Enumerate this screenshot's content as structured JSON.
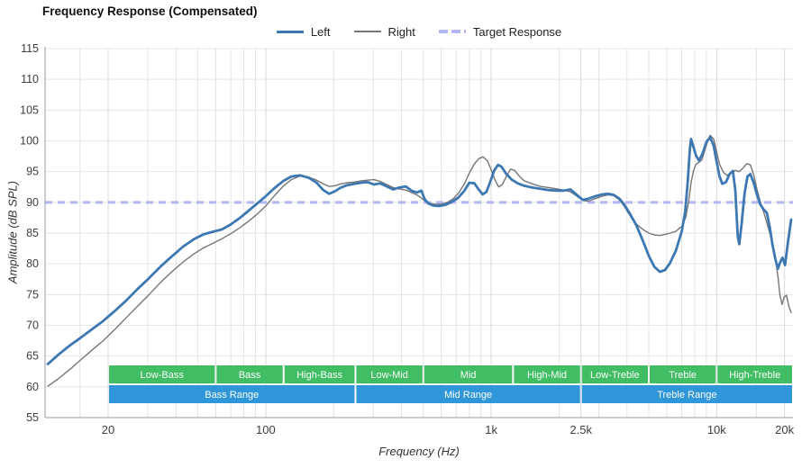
{
  "chart_data": {
    "type": "line",
    "title": "Frequency Response (Compensated)",
    "xlabel": "Frequency (Hz)",
    "ylabel": "Amplitude (dB SPL)",
    "x_scale": "log",
    "xlim": [
      10.5,
      21800
    ],
    "ylim": [
      55,
      115
    ],
    "y_ticks": [
      115,
      110,
      105,
      100,
      95,
      90,
      85,
      80,
      75,
      70,
      65,
      60,
      55
    ],
    "x_ticks": [
      {
        "f": 20,
        "label": "20"
      },
      {
        "f": 100,
        "label": "100"
      },
      {
        "f": 1000,
        "label": "1k"
      },
      {
        "f": 2500,
        "label": "2.5k"
      },
      {
        "f": 10000,
        "label": "10k"
      },
      {
        "f": 20000,
        "label": "20k"
      }
    ],
    "x_minor_gridlines": [
      15,
      30,
      40,
      50,
      60,
      70,
      80,
      90,
      200,
      300,
      400,
      500,
      600,
      700,
      800,
      900,
      2000,
      3000,
      4000,
      5000,
      6000,
      7000,
      8000,
      9000,
      15000
    ],
    "grid_color": "#e4e4e4",
    "major_grid_color": "#d9d9d9",
    "axis_color": "#9b9b9b",
    "tick_label_color": "#3d3d3d",
    "target": {
      "name": "Target Response",
      "value": 90,
      "color": "#b2b7f3",
      "width": 3,
      "dash": "8 6"
    },
    "series": [
      {
        "name": "Left",
        "color": "#3e78b3",
        "width": 2.8,
        "points": [
          [
            10.8,
            63.7
          ],
          [
            12,
            65.2
          ],
          [
            13.5,
            66.7
          ],
          [
            15,
            67.9
          ],
          [
            17,
            69.4
          ],
          [
            19,
            70.7
          ],
          [
            21.5,
            72.4
          ],
          [
            24,
            74
          ],
          [
            27,
            75.9
          ],
          [
            30,
            77.5
          ],
          [
            34,
            79.5
          ],
          [
            38,
            81.1
          ],
          [
            43,
            82.8
          ],
          [
            48,
            84
          ],
          [
            53,
            84.8
          ],
          [
            58,
            85.2
          ],
          [
            64,
            85.6
          ],
          [
            70,
            86.4
          ],
          [
            77,
            87.5
          ],
          [
            85,
            88.8
          ],
          [
            93,
            90
          ],
          [
            100,
            91
          ],
          [
            110,
            92.4
          ],
          [
            120,
            93.5
          ],
          [
            130,
            94.2
          ],
          [
            142,
            94.4
          ],
          [
            155,
            94
          ],
          [
            168,
            93.2
          ],
          [
            180,
            92
          ],
          [
            191,
            91.4
          ],
          [
            203,
            91.8
          ],
          [
            215,
            92.4
          ],
          [
            230,
            92.8
          ],
          [
            247,
            93
          ],
          [
            265,
            93.2
          ],
          [
            283,
            93.3
          ],
          [
            302,
            92.9
          ],
          [
            322,
            93.1
          ],
          [
            344,
            92.6
          ],
          [
            367,
            92.1
          ],
          [
            392,
            92.4
          ],
          [
            418,
            92.6
          ],
          [
            443,
            91.9
          ],
          [
            468,
            91.6
          ],
          [
            490,
            91.9
          ],
          [
            507,
            90.5
          ],
          [
            527,
            89.8
          ],
          [
            552,
            89.5
          ],
          [
            587,
            89.4
          ],
          [
            627,
            89.6
          ],
          [
            668,
            90.1
          ],
          [
            712,
            90.7
          ],
          [
            757,
            91.8
          ],
          [
            800,
            93.2
          ],
          [
            842,
            93.1
          ],
          [
            880,
            92.1
          ],
          [
            916,
            91.3
          ],
          [
            952,
            91.7
          ],
          [
            992,
            93.4
          ],
          [
            1032,
            95.2
          ],
          [
            1072,
            96.1
          ],
          [
            1112,
            95.8
          ],
          [
            1162,
            94.7
          ],
          [
            1232,
            93.7
          ],
          [
            1312,
            93.1
          ],
          [
            1400,
            92.7
          ],
          [
            1520,
            92.4
          ],
          [
            1650,
            92.2
          ],
          [
            1800,
            92
          ],
          [
            1950,
            91.9
          ],
          [
            2100,
            91.9
          ],
          [
            2250,
            92.1
          ],
          [
            2400,
            91.2
          ],
          [
            2550,
            90.4
          ],
          [
            2700,
            90.6
          ],
          [
            2900,
            91
          ],
          [
            3100,
            91.3
          ],
          [
            3300,
            91.4
          ],
          [
            3500,
            91.2
          ],
          [
            3700,
            90.6
          ],
          [
            3900,
            89.6
          ],
          [
            4100,
            88.3
          ],
          [
            4400,
            86.3
          ],
          [
            4700,
            83.8
          ],
          [
            5000,
            81.3
          ],
          [
            5300,
            79.5
          ],
          [
            5600,
            78.7
          ],
          [
            5900,
            79
          ],
          [
            6200,
            80.1
          ],
          [
            6600,
            82.2
          ],
          [
            7000,
            85.3
          ],
          [
            7250,
            88.5
          ],
          [
            7450,
            93.5
          ],
          [
            7600,
            98.5
          ],
          [
            7700,
            100.3
          ],
          [
            7850,
            99.3
          ],
          [
            8100,
            97.6
          ],
          [
            8350,
            96.8
          ],
          [
            8650,
            97.9
          ],
          [
            9000,
            99.8
          ],
          [
            9350,
            100.6
          ],
          [
            9700,
            99.2
          ],
          [
            10000,
            96.6
          ],
          [
            10300,
            94.2
          ],
          [
            10600,
            93
          ],
          [
            11000,
            93.3
          ],
          [
            11400,
            94.6
          ],
          [
            11800,
            95.1
          ],
          [
            12100,
            92
          ],
          [
            12400,
            84.5
          ],
          [
            12600,
            83.2
          ],
          [
            12900,
            86.5
          ],
          [
            13300,
            91.5
          ],
          [
            13700,
            94.2
          ],
          [
            14100,
            94.6
          ],
          [
            14600,
            93.2
          ],
          [
            15100,
            91.2
          ],
          [
            15600,
            89.7
          ],
          [
            16100,
            88.9
          ],
          [
            16700,
            88.3
          ],
          [
            17200,
            86
          ],
          [
            17700,
            83
          ],
          [
            18200,
            80.8
          ],
          [
            18700,
            79.2
          ],
          [
            19100,
            80.2
          ],
          [
            19600,
            81
          ],
          [
            20100,
            79.8
          ],
          [
            20700,
            83.5
          ],
          [
            21400,
            87.2
          ]
        ]
      },
      {
        "name": "Right",
        "color": "#767676",
        "width": 1.4,
        "points": [
          [
            10.8,
            60.1
          ],
          [
            12,
            61.3
          ],
          [
            13.5,
            62.8
          ],
          [
            15,
            64.3
          ],
          [
            17,
            66
          ],
          [
            19,
            67.5
          ],
          [
            21.5,
            69.4
          ],
          [
            24,
            71.2
          ],
          [
            27,
            73.1
          ],
          [
            30,
            74.8
          ],
          [
            34,
            76.9
          ],
          [
            38,
            78.6
          ],
          [
            43,
            80.3
          ],
          [
            48,
            81.6
          ],
          [
            53,
            82.6
          ],
          [
            58,
            83.3
          ],
          [
            64,
            84.1
          ],
          [
            70,
            84.9
          ],
          [
            77,
            85.9
          ],
          [
            85,
            87.1
          ],
          [
            93,
            88.3
          ],
          [
            100,
            89.4
          ],
          [
            110,
            91.2
          ],
          [
            120,
            92.7
          ],
          [
            130,
            93.7
          ],
          [
            142,
            94.3
          ],
          [
            155,
            94.1
          ],
          [
            168,
            93.6
          ],
          [
            180,
            93
          ],
          [
            191,
            92.6
          ],
          [
            203,
            92.7
          ],
          [
            215,
            93
          ],
          [
            230,
            93.2
          ],
          [
            247,
            93.3
          ],
          [
            265,
            93.5
          ],
          [
            283,
            93.6
          ],
          [
            302,
            93.7
          ],
          [
            322,
            93.4
          ],
          [
            344,
            92.9
          ],
          [
            367,
            92.4
          ],
          [
            392,
            92.2
          ],
          [
            418,
            92
          ],
          [
            443,
            91.6
          ],
          [
            468,
            91.2
          ],
          [
            490,
            90.7
          ],
          [
            510,
            90.2
          ],
          [
            530,
            89.9
          ],
          [
            560,
            89.7
          ],
          [
            600,
            89.7
          ],
          [
            640,
            90
          ],
          [
            680,
            90.6
          ],
          [
            720,
            91.6
          ],
          [
            760,
            93
          ],
          [
            800,
            94.8
          ],
          [
            840,
            96.2
          ],
          [
            880,
            97.1
          ],
          [
            920,
            97.4
          ],
          [
            960,
            96.8
          ],
          [
            1000,
            95.3
          ],
          [
            1040,
            93.6
          ],
          [
            1080,
            92.5
          ],
          [
            1120,
            92.9
          ],
          [
            1170,
            94.3
          ],
          [
            1220,
            95.4
          ],
          [
            1270,
            95.2
          ],
          [
            1330,
            94.3
          ],
          [
            1400,
            93.5
          ],
          [
            1520,
            93
          ],
          [
            1650,
            92.6
          ],
          [
            1800,
            92.4
          ],
          [
            1950,
            92.2
          ],
          [
            2100,
            92
          ],
          [
            2250,
            91.7
          ],
          [
            2400,
            91
          ],
          [
            2550,
            90.3
          ],
          [
            2700,
            90.2
          ],
          [
            2900,
            90.6
          ],
          [
            3100,
            91
          ],
          [
            3300,
            91.2
          ],
          [
            3500,
            91.1
          ],
          [
            3700,
            90.4
          ],
          [
            3900,
            89.3
          ],
          [
            4100,
            88
          ],
          [
            4400,
            86.5
          ],
          [
            4700,
            85.6
          ],
          [
            5000,
            85
          ],
          [
            5300,
            84.7
          ],
          [
            5600,
            84.6
          ],
          [
            5900,
            84.8
          ],
          [
            6200,
            85
          ],
          [
            6600,
            85.3
          ],
          [
            7000,
            86.1
          ],
          [
            7300,
            87.6
          ],
          [
            7500,
            90
          ],
          [
            7700,
            93.2
          ],
          [
            7900,
            95.2
          ],
          [
            8100,
            96.2
          ],
          [
            8350,
            96.5
          ],
          [
            8600,
            96.9
          ],
          [
            9000,
            99.3
          ],
          [
            9350,
            100.9
          ],
          [
            9700,
            100.3
          ],
          [
            10000,
            98.2
          ],
          [
            10300,
            96.2
          ],
          [
            10700,
            94.9
          ],
          [
            11100,
            94.4
          ],
          [
            11600,
            94.8
          ],
          [
            12100,
            95.2
          ],
          [
            12600,
            95
          ],
          [
            13100,
            95.6
          ],
          [
            13600,
            96.3
          ],
          [
            14100,
            96.1
          ],
          [
            14600,
            94.5
          ],
          [
            15100,
            92.1
          ],
          [
            15700,
            89.8
          ],
          [
            16300,
            88
          ],
          [
            16900,
            86
          ],
          [
            17500,
            84
          ],
          [
            18100,
            81.5
          ],
          [
            18700,
            78
          ],
          [
            19100,
            74.8
          ],
          [
            19500,
            73.4
          ],
          [
            19900,
            74.6
          ],
          [
            20400,
            74.9
          ],
          [
            20900,
            73.1
          ],
          [
            21400,
            72.1
          ]
        ]
      }
    ],
    "bands": {
      "sub": {
        "color": "#41bd63",
        "text_color": "#ffffff",
        "items": [
          {
            "label": "Low-Bass",
            "from": 20,
            "to": 60
          },
          {
            "label": "Bass",
            "from": 60,
            "to": 120
          },
          {
            "label": "High-Bass",
            "from": 120,
            "to": 250
          },
          {
            "label": "Low-Mid",
            "from": 250,
            "to": 500
          },
          {
            "label": "Mid",
            "from": 500,
            "to": 1250
          },
          {
            "label": "High-Mid",
            "from": 1250,
            "to": 2500
          },
          {
            "label": "Low-Treble",
            "from": 2500,
            "to": 5000
          },
          {
            "label": "Treble",
            "from": 5000,
            "to": 10000
          },
          {
            "label": "High-Treble",
            "from": 10000,
            "to": 21800
          }
        ]
      },
      "main": {
        "color": "#2f96d9",
        "text_color": "#ffffff",
        "items": [
          {
            "label": "Bass Range",
            "from": 20,
            "to": 250
          },
          {
            "label": "Mid Range",
            "from": 250,
            "to": 2500
          },
          {
            "label": "Treble Range",
            "from": 2500,
            "to": 21800
          }
        ]
      }
    }
  }
}
